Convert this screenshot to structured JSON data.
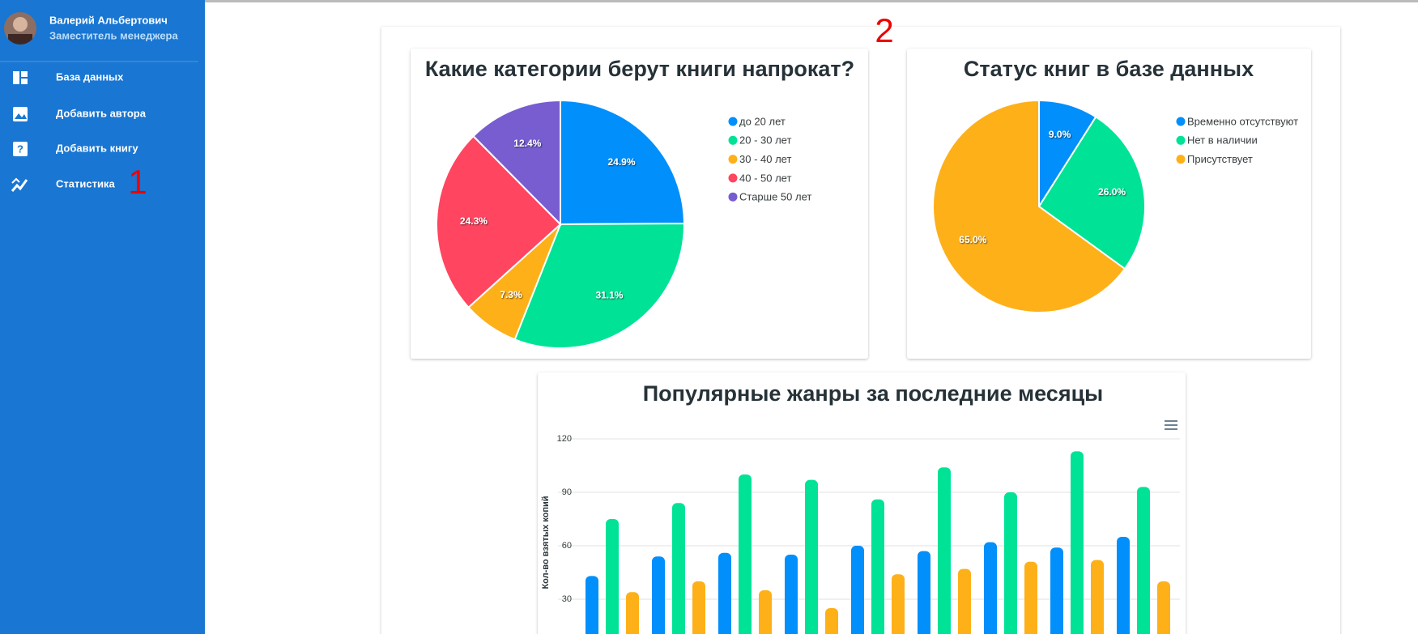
{
  "sidebar": {
    "user_name": "Валерий Альбертович",
    "user_role": "Заместитель менеджера",
    "nav": [
      "База данных",
      "Добавить автора",
      "Добавить книгу",
      "Статистика"
    ]
  },
  "annotations": [
    "1",
    "2"
  ],
  "chart_data": [
    {
      "type": "pie",
      "title": "Какие категории берут книги напрокат?",
      "categories": [
        "до 20 лет",
        "20 - 30 лет",
        "30 - 40 лет",
        "40 - 50 лет",
        "Старше 50 лет"
      ],
      "values": [
        24.9,
        31.1,
        7.3,
        24.3,
        12.4
      ],
      "value_labels": [
        "24.9%",
        "31.1%",
        "7.3%",
        "24.3%",
        "12.4%"
      ],
      "colors": [
        "#008ffb",
        "#00e396",
        "#feb019",
        "#ff4560",
        "#775dd0"
      ]
    },
    {
      "type": "pie",
      "title": "Статус книг в базе данных",
      "categories": [
        "Временно отсутствуют",
        "Нет в наличии",
        "Присутствует"
      ],
      "values": [
        9,
        26,
        65
      ],
      "value_labels": [
        "9.0%",
        "26.0%",
        "65.0%"
      ],
      "colors": [
        "#008ffb",
        "#00e396",
        "#feb019"
      ]
    },
    {
      "type": "bar",
      "title": "Популярные жанры за последние месяцы",
      "y_label": "Кол-во взятых копий",
      "categories": [
        null,
        null,
        null,
        null,
        null,
        null,
        null,
        null,
        null
      ],
      "series": [
        {
          "color": "#008ffb",
          "values": [
            43,
            54,
            56,
            55,
            60,
            57,
            62,
            59,
            65
          ]
        },
        {
          "color": "#00e396",
          "values": [
            75,
            84,
            100,
            97,
            86,
            104,
            90,
            113,
            93
          ]
        },
        {
          "color": "#feb019",
          "values": [
            34,
            40,
            35,
            25,
            44,
            47,
            51,
            52,
            40
          ]
        }
      ],
      "ylim": [
        0,
        120
      ],
      "yticks": [
        30,
        60,
        90,
        120
      ],
      "grid": true
    }
  ]
}
